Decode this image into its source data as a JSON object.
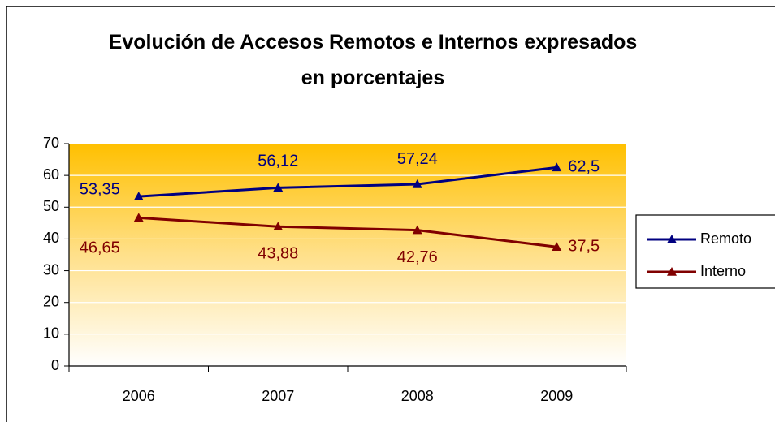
{
  "chart_data": {
    "type": "line",
    "title": "Evolución de Accesos Remotos e Internos expresados en porcentajes",
    "categories": [
      "2006",
      "2007",
      "2008",
      "2009"
    ],
    "series": [
      {
        "name": "Remoto",
        "color": "#000080",
        "values": [
          53.35,
          56.12,
          57.24,
          62.5
        ],
        "value_labels": [
          "53,35",
          "56,12",
          "57,24",
          "62,5"
        ]
      },
      {
        "name": "Interno",
        "color": "#800000",
        "values": [
          46.65,
          43.88,
          42.76,
          37.5
        ],
        "value_labels": [
          "46,65",
          "43,88",
          "42,76",
          "37,5"
        ]
      }
    ],
    "ylim": [
      0,
      70
    ],
    "yticks": [
      0,
      10,
      20,
      30,
      40,
      50,
      60,
      70
    ],
    "grid": true,
    "legend": "right"
  }
}
